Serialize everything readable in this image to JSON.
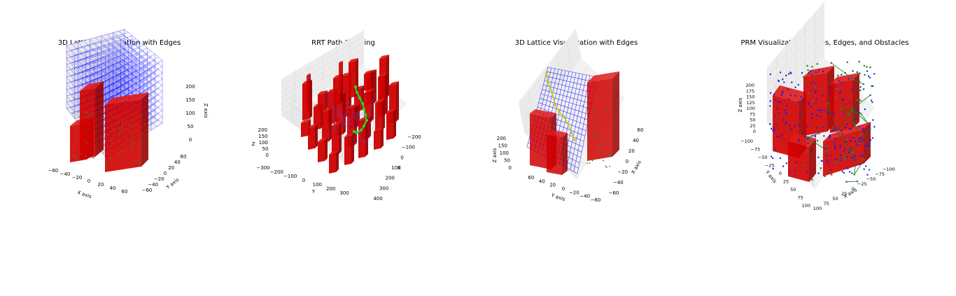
{
  "figure": {
    "background": "#ffffff",
    "colors": {
      "obstacle": "#d00000",
      "obstacle_dark": "#9a0000",
      "edges": "#1f1fff",
      "nodes": "#2a8a2a",
      "path": "#22dd22",
      "path_yellow": "#c8c800",
      "prm_edges": "#0a7a1a",
      "prm_nodes": "#1f1fd8"
    }
  },
  "chart_data": [
    {
      "type": "scatter3d",
      "title": "3D Lattice Visualization with Edges",
      "xlabel": "X axis",
      "ylabel": "Y axis",
      "zlabel": "Z axis",
      "xticks": [
        "−60",
        "−40",
        "−20",
        "0",
        "20",
        "40",
        "60"
      ],
      "yticks": [
        "−60",
        "−40",
        "−20",
        "0",
        "20",
        "40",
        "60"
      ],
      "zticks": [
        "0",
        "50",
        "100",
        "150",
        "200"
      ],
      "xlim": [
        -60,
        60
      ],
      "ylim": [
        -60,
        60
      ],
      "zlim": [
        0,
        200
      ],
      "grid": true
    },
    {
      "type": "scatter3d",
      "title": "RRT Path Planning",
      "xlabel": "X",
      "ylabel": "Y",
      "zlabel": "Z",
      "xticks": [
        "−200",
        "−100",
        "0",
        "100",
        "200",
        "300",
        "400"
      ],
      "yticks": [
        "−300",
        "−200",
        "−100",
        "0",
        "100",
        "200",
        "300"
      ],
      "zticks": [
        "0",
        "50",
        "100",
        "150",
        "200"
      ],
      "xlim": [
        -250,
        400
      ],
      "ylim": [
        -300,
        300
      ],
      "zlim": [
        0,
        200
      ],
      "grid": true
    },
    {
      "type": "scatter3d",
      "title": "3D Lattice Visualization with Edges",
      "xlabel": "X axis",
      "ylabel": "Y axis",
      "zlabel": "Z axis",
      "xticks": [
        "60",
        "40",
        "20",
        "0",
        "−20",
        "−40",
        "−60"
      ],
      "yticks": [
        "60",
        "40",
        "20",
        "0",
        "−20",
        "−40",
        "−60"
      ],
      "zticks": [
        "0",
        "50",
        "100",
        "150",
        "200"
      ],
      "xlim": [
        -60,
        60
      ],
      "ylim": [
        -60,
        60
      ],
      "zlim": [
        0,
        200
      ],
      "grid": true
    },
    {
      "type": "scatter3d",
      "title": "PRM Visualization: Nodes, Edges, and Obstacles",
      "xlabel": "X axis",
      "ylabel": "Y axis",
      "zlabel": "Z axis",
      "xticks": [
        "−100",
        "−75",
        "−50",
        "−25",
        "0",
        "25",
        "50",
        "75",
        "100"
      ],
      "yticks": [
        "−100",
        "−75",
        "−50",
        "−25",
        "0",
        "25",
        "50",
        "75",
        "100"
      ],
      "zticks": [
        "0",
        "25",
        "50",
        "75",
        "100",
        "125",
        "150",
        "175",
        "200"
      ],
      "xlim": [
        -100,
        100
      ],
      "ylim": [
        -100,
        100
      ],
      "zlim": [
        0,
        200
      ],
      "grid": true
    }
  ]
}
